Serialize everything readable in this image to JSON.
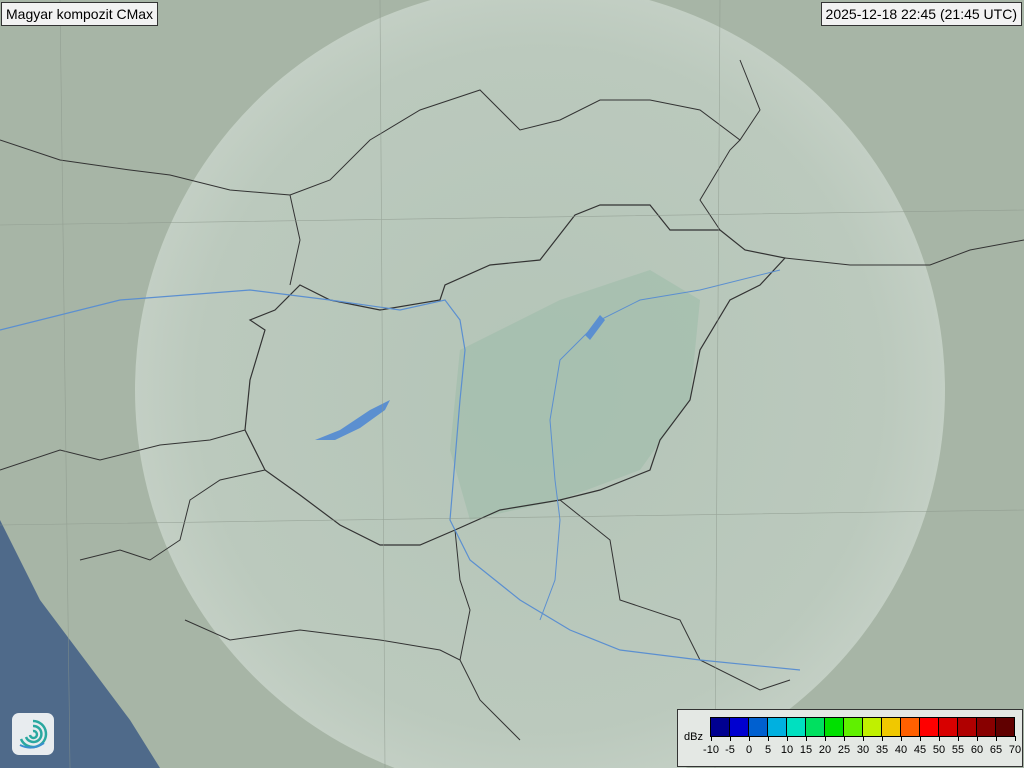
{
  "header": {
    "title": "Magyar kompozit  CMax",
    "timestamp": "2025-12-18 22:45 (21:45 UTC)"
  },
  "map": {
    "land_color": "#a7b5a6",
    "sea_color": "#4f6a8a",
    "radar_coverage_color": "#c9d6cc",
    "border_color": "#333333",
    "river_color": "#5b8fd0",
    "logo_icon": "swirl-logo-icon"
  },
  "legend": {
    "unit": "dBz",
    "ticks": [
      "-10",
      "-5",
      "0",
      "5",
      "10",
      "15",
      "20",
      "25",
      "30",
      "35",
      "40",
      "45",
      "50",
      "55",
      "60",
      "65",
      "70"
    ],
    "colors": [
      "#000090",
      "#0000d0",
      "#0060d0",
      "#00b0e0",
      "#00e0c0",
      "#00e060",
      "#00e000",
      "#60f000",
      "#c0f000",
      "#f0c800",
      "#ff6000",
      "#ff0000",
      "#d80000",
      "#b00000",
      "#880000",
      "#600000"
    ]
  }
}
